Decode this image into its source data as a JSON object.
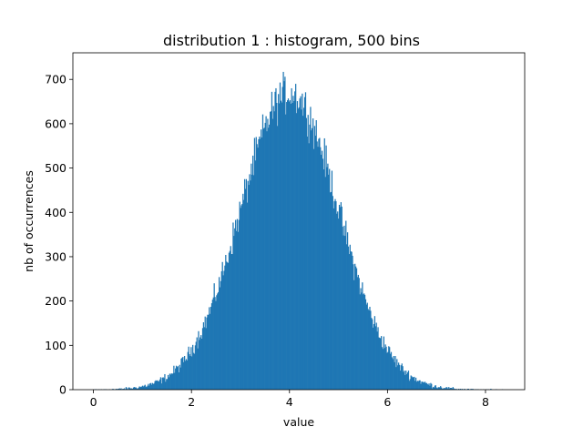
{
  "chart_data": {
    "type": "bar",
    "title": "distribution 1 : histogram, 500 bins",
    "xlabel": "value",
    "ylabel": "nb of occurrences",
    "xlim": [
      -0.42,
      8.8
    ],
    "ylim": [
      0,
      760
    ],
    "x_ticks": [
      0,
      2,
      4,
      6,
      8
    ],
    "y_ticks": [
      0,
      100,
      200,
      300,
      400,
      500,
      600,
      700
    ],
    "grid": false,
    "bins": 500,
    "bin_range": [
      0,
      8.4
    ],
    "series_color": "#1f77b4",
    "distribution_estimate": {
      "shape": "gaussian",
      "center": 4.0,
      "spread": 1.0,
      "peak_count": 670
    }
  }
}
